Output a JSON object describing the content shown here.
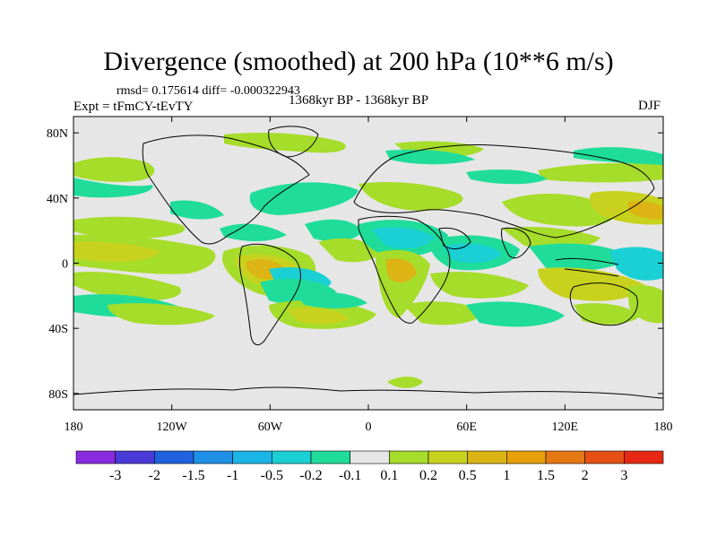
{
  "title": "Divergence (smoothed) at 200 hPa (10**6 m/s)",
  "stats": "rmsd= 0.175614 diff= -0.000322943",
  "experiment": "Expt = tFmCY-tEvTY",
  "period": "1368kyr BP - 1368kyr BP",
  "season": "DJF",
  "map": {
    "lon_range": [
      -180,
      180
    ],
    "lat_range": [
      -90,
      90
    ],
    "background_color": "#e6e6e6",
    "lat_ticks": [
      {
        "value": 80,
        "label": "80N"
      },
      {
        "value": 40,
        "label": "40N"
      },
      {
        "value": 0,
        "label": "0"
      },
      {
        "value": -40,
        "label": "40S"
      },
      {
        "value": -80,
        "label": "80S"
      }
    ],
    "lon_ticks": [
      {
        "value": -180,
        "label": "180"
      },
      {
        "value": -120,
        "label": "120W"
      },
      {
        "value": -60,
        "label": "60W"
      },
      {
        "value": 0,
        "label": "0"
      },
      {
        "value": 60,
        "label": "60E"
      },
      {
        "value": 120,
        "label": "120E"
      },
      {
        "value": 180,
        "label": "180"
      }
    ]
  },
  "colorbar": {
    "colors": [
      "#8a2be2",
      "#4a3ad8",
      "#1f62e0",
      "#1e90e6",
      "#1ab4e6",
      "#1ad0d4",
      "#1fdc9a",
      "#e6e6e6",
      "#a6dc2a",
      "#c8d21e",
      "#dcb414",
      "#e6a00a",
      "#e67814",
      "#e65014",
      "#e62814"
    ],
    "labels": [
      "-3",
      "-2",
      "-1.5",
      "-1",
      "-0.5",
      "-0.2",
      "-0.1",
      "0.1",
      "0.2",
      "0.5",
      "1",
      "1.5",
      "2",
      "3"
    ]
  },
  "chart_data": {
    "type": "heatmap",
    "title": "Divergence (smoothed) at 200 hPa (10**6 m/s)",
    "variable": "200 hPa divergence difference",
    "units": "10**6 m/s",
    "levels": [
      -3,
      -2,
      -1.5,
      -1,
      -0.5,
      -0.2,
      -0.1,
      0.1,
      0.2,
      0.5,
      1,
      1.5,
      2,
      3
    ],
    "x_range": [
      -180,
      180
    ],
    "y_range": [
      -90,
      90
    ],
    "features": [
      {
        "lon": -60,
        "lat": 0,
        "value": 1.0
      },
      {
        "lon": 15,
        "lat": 5,
        "value": 0.5
      },
      {
        "lon": -20,
        "lat": 15,
        "value": -0.5
      },
      {
        "lon": 45,
        "lat": 15,
        "value": -0.5
      },
      {
        "lon": 145,
        "lat": -10,
        "value": -0.5
      },
      {
        "lon": 120,
        "lat": 40,
        "value": 0.5
      },
      {
        "lon": -160,
        "lat": 10,
        "value": 0.5
      },
      {
        "lon": -80,
        "lat": 20,
        "value": -0.5
      },
      {
        "lon": -40,
        "lat": 45,
        "value": -0.2
      },
      {
        "lon": 60,
        "lat": -20,
        "value": 0.5
      }
    ]
  }
}
